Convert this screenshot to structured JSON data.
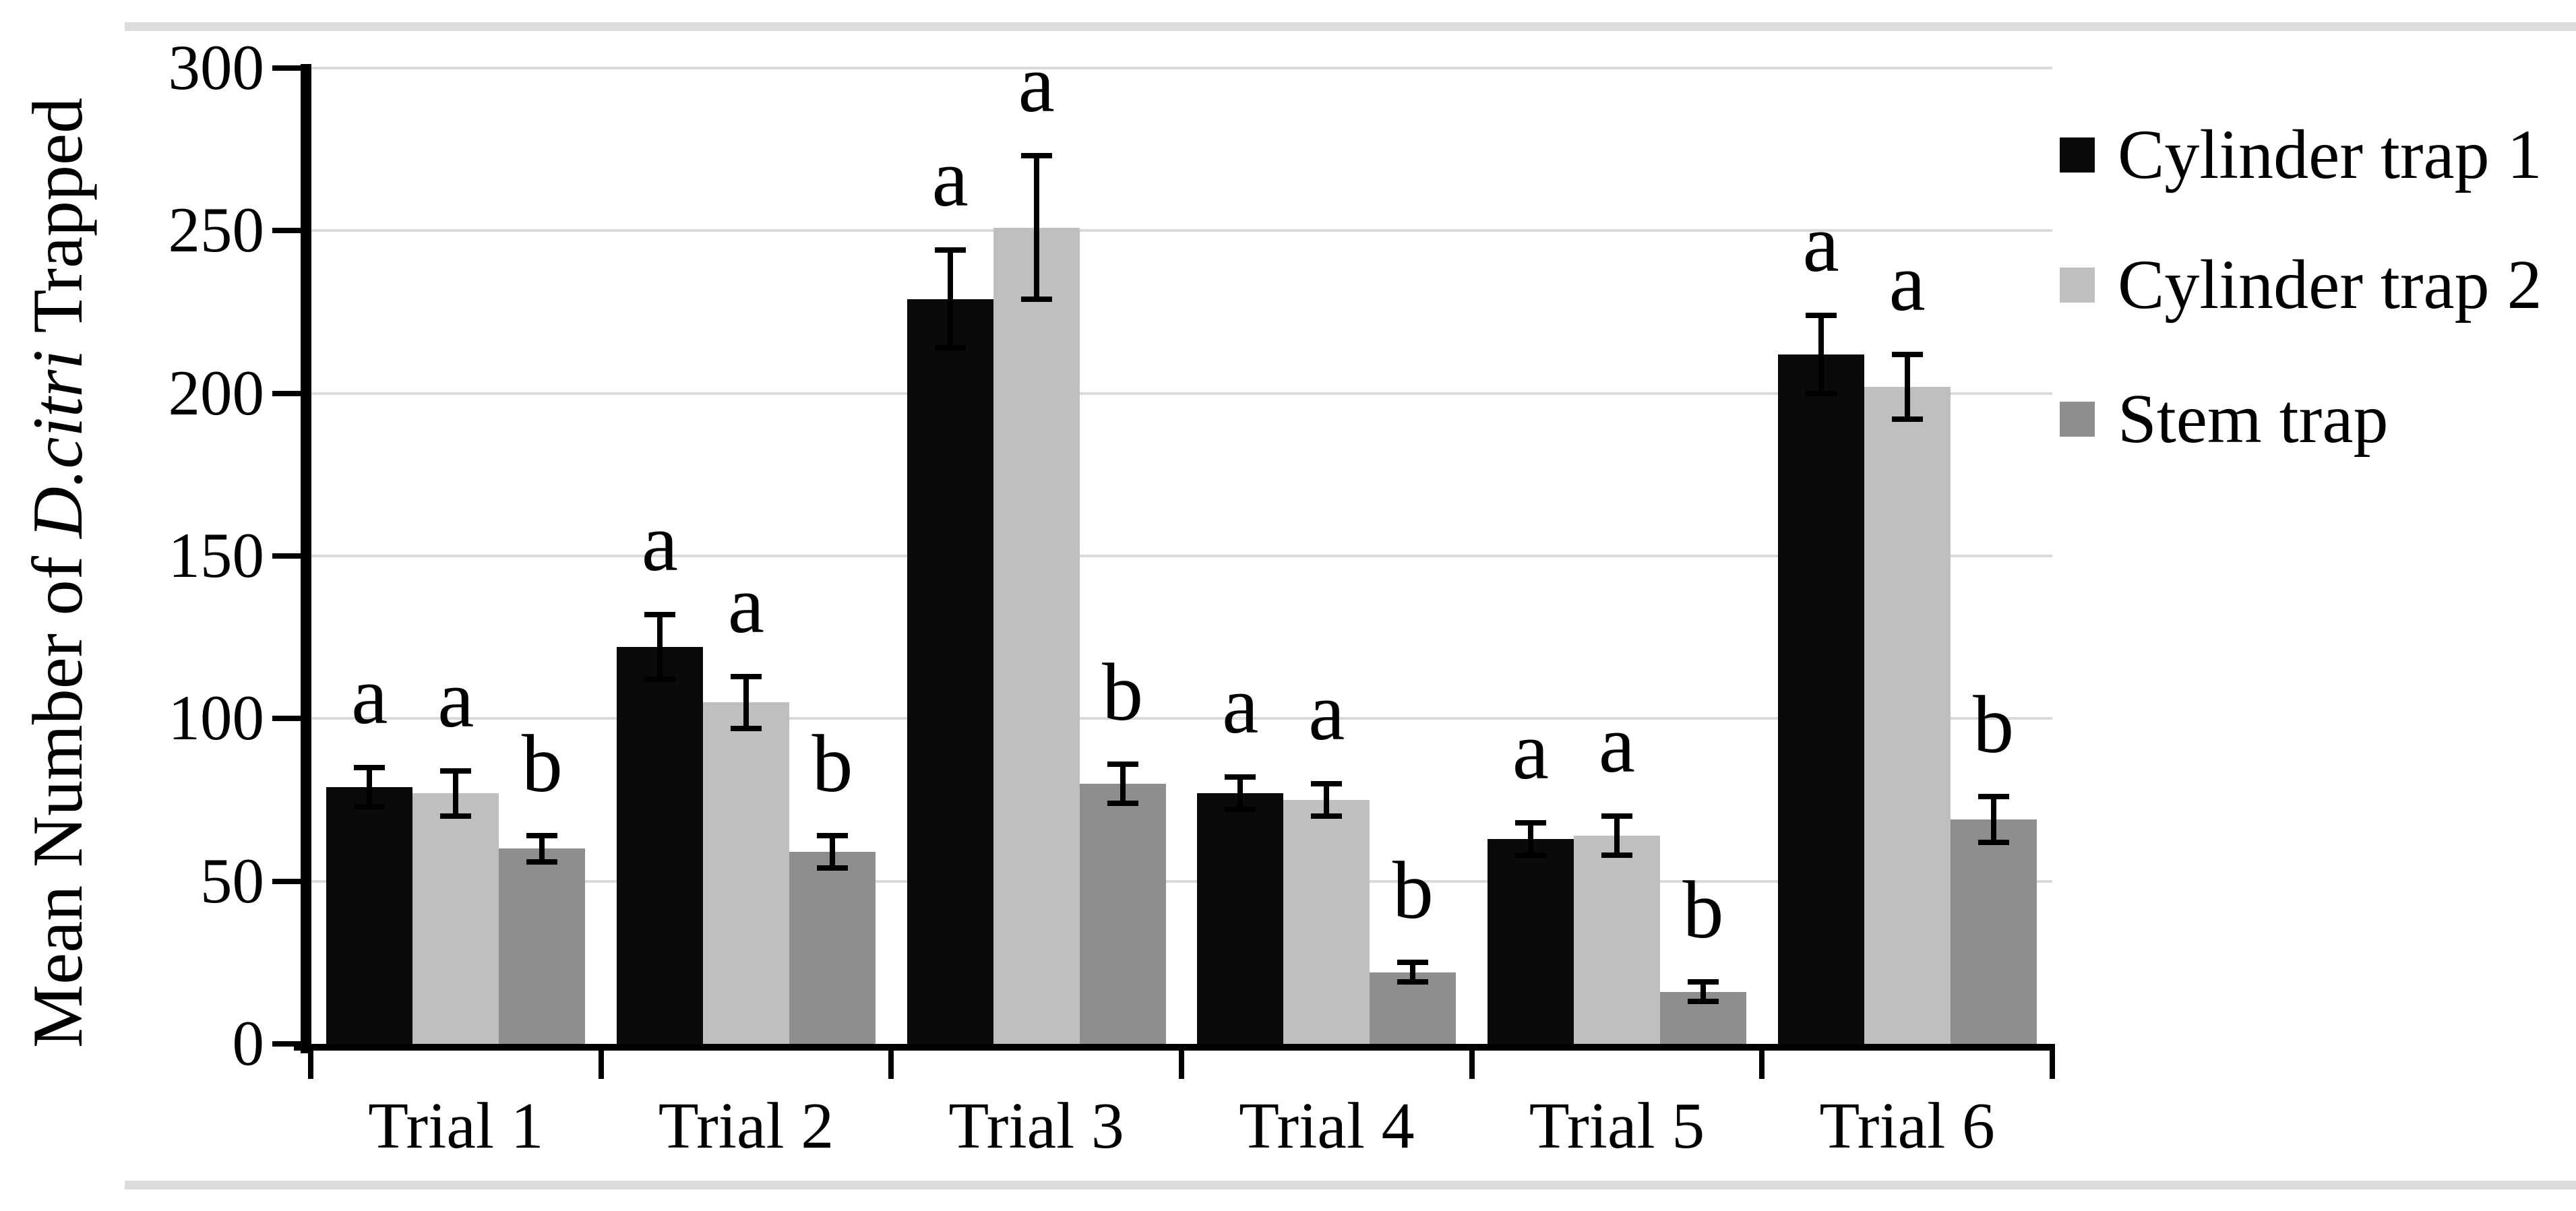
{
  "figure": {
    "y_axis_title": {
      "prefix": "Mean Number of ",
      "italic": "D.citri",
      "suffix": " Trapped"
    }
  },
  "chart_data": {
    "type": "bar",
    "title": "",
    "xlabel": "",
    "ylabel": "Mean Number of D.citri Trapped",
    "ylabel_italic_segment": "D.citri",
    "categories": [
      "Trial 1",
      "Trial 2",
      "Trial 3",
      "Trial 4",
      "Trial 5",
      "Trial 6"
    ],
    "series": [
      {
        "name": "Cylinder trap 1",
        "color": "#0a0a0a",
        "values": [
          79,
          122,
          229,
          77,
          63,
          212
        ],
        "errors": [
          6,
          10,
          15,
          5,
          5,
          12
        ]
      },
      {
        "name": "Cylinder trap 2",
        "color": "#bfbfbf",
        "values": [
          77,
          105,
          251,
          75,
          64,
          202
        ],
        "errors": [
          7,
          8,
          22,
          5,
          6,
          10
        ]
      },
      {
        "name": "Stem trap",
        "color": "#8e8e8e",
        "values": [
          60,
          59,
          80,
          22,
          16,
          69
        ],
        "errors": [
          4,
          5,
          6,
          3,
          3,
          7
        ]
      }
    ],
    "sig_letters": [
      [
        "a",
        "a",
        "b"
      ],
      [
        "a",
        "a",
        "b"
      ],
      [
        "a",
        "a",
        "b"
      ],
      [
        "a",
        "a",
        "b"
      ],
      [
        "a",
        "a",
        "b"
      ],
      [
        "a",
        "a",
        "b"
      ]
    ],
    "ylim": [
      0,
      300
    ],
    "yticks": [
      0,
      50,
      100,
      150,
      200,
      250,
      300
    ],
    "grid": true,
    "error_bars": true,
    "legend_position": "right",
    "colors": {
      "gridline": "#d9d9d9",
      "axis": "#000000",
      "background": "#ffffff",
      "edge_strip": "#dcdcdc"
    }
  }
}
